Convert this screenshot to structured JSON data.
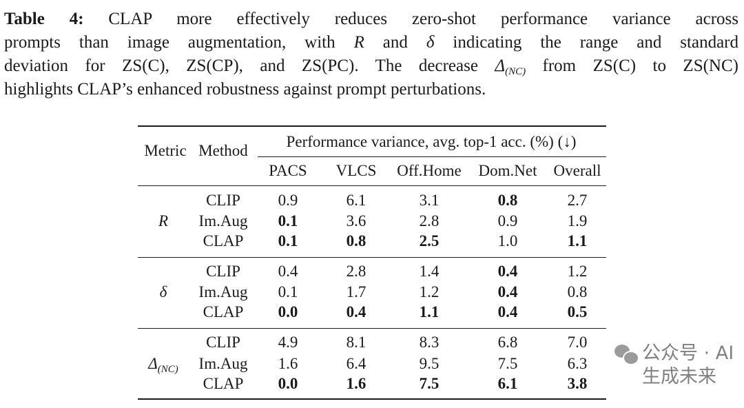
{
  "caption": {
    "label": "Table 4:",
    "line1": " CLAP more effectively reduces zero-shot performance variance across",
    "line2a": "prompts than image augmentation, with ",
    "sym_R": "R",
    "line2b": " and ",
    "sym_delta": "δ",
    "line2c": " indicating the range and standard",
    "line3a": "deviation for ZS(C), ZS(CP), and ZS(PC). The decrease ",
    "sym_Delta": "Δ",
    "sym_Delta_sub": "(NC)",
    "line3b": " from ZS(C) to ZS(NC)",
    "line4": "highlights CLAP’s enhanced robustness against prompt perturbations."
  },
  "table": {
    "header": {
      "metric": "Metric",
      "method": "Method",
      "group": "Performance variance, avg. top-1 acc. (%) (↓)",
      "columns": [
        "PACS",
        "VLCS",
        "Off.Home",
        "Dom.Net",
        "Overall"
      ]
    },
    "groups": [
      {
        "metric": "R",
        "metric_sub": "",
        "rows": [
          {
            "method": "CLIP",
            "values": [
              "0.9",
              "6.1",
              "3.1",
              "0.8",
              "2.7"
            ],
            "bold": [
              false,
              false,
              false,
              true,
              false
            ]
          },
          {
            "method": "Im.Aug",
            "values": [
              "0.1",
              "3.6",
              "2.8",
              "0.9",
              "1.9"
            ],
            "bold": [
              true,
              false,
              false,
              false,
              false
            ]
          },
          {
            "method": "CLAP",
            "values": [
              "0.1",
              "0.8",
              "2.5",
              "1.0",
              "1.1"
            ],
            "bold": [
              true,
              true,
              true,
              false,
              true
            ]
          }
        ]
      },
      {
        "metric": "δ",
        "metric_sub": "",
        "rows": [
          {
            "method": "CLIP",
            "values": [
              "0.4",
              "2.8",
              "1.4",
              "0.4",
              "1.2"
            ],
            "bold": [
              false,
              false,
              false,
              true,
              false
            ]
          },
          {
            "method": "Im.Aug",
            "values": [
              "0.1",
              "1.7",
              "1.2",
              "0.4",
              "0.8"
            ],
            "bold": [
              false,
              false,
              false,
              true,
              false
            ]
          },
          {
            "method": "CLAP",
            "values": [
              "0.0",
              "0.4",
              "1.1",
              "0.4",
              "0.5"
            ],
            "bold": [
              true,
              true,
              true,
              true,
              true
            ]
          }
        ]
      },
      {
        "metric": "Δ",
        "metric_sub": "(NC)",
        "rows": [
          {
            "method": "CLIP",
            "values": [
              "4.9",
              "8.1",
              "8.3",
              "6.8",
              "7.0"
            ],
            "bold": [
              false,
              false,
              false,
              false,
              false
            ]
          },
          {
            "method": "Im.Aug",
            "values": [
              "1.6",
              "6.4",
              "9.5",
              "7.5",
              "6.3"
            ],
            "bold": [
              false,
              false,
              false,
              false,
              false
            ]
          },
          {
            "method": "CLAP",
            "values": [
              "0.0",
              "1.6",
              "7.5",
              "6.1",
              "3.8"
            ],
            "bold": [
              true,
              true,
              true,
              true,
              true
            ]
          }
        ]
      }
    ]
  },
  "watermark": {
    "text": "公众号 · AI生成未来",
    "icon": "wechat-icon"
  }
}
